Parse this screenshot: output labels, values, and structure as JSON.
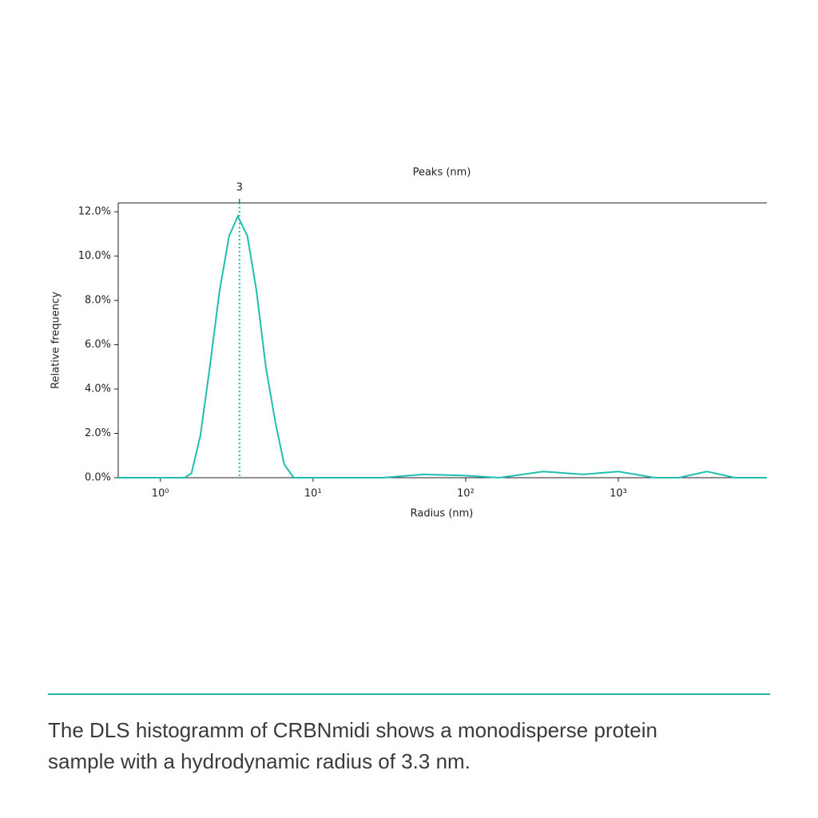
{
  "chart_data": {
    "type": "line",
    "xlabel": "Radius (nm)",
    "ylabel": "Relative frequency",
    "x2label": "Peaks (nm)",
    "xscale": "log",
    "xlim": [
      0.53,
      9400
    ],
    "ylim": [
      0,
      12.4
    ],
    "xticks": [
      {
        "value": 1,
        "label": "10⁰"
      },
      {
        "value": 10,
        "label": "10¹"
      },
      {
        "value": 100,
        "label": "10²"
      },
      {
        "value": 1000,
        "label": "10³"
      }
    ],
    "yticks": [
      {
        "value": 0,
        "label": "0.0%"
      },
      {
        "value": 2,
        "label": "2.0%"
      },
      {
        "value": 4,
        "label": "4.0%"
      },
      {
        "value": 6,
        "label": "6.0%"
      },
      {
        "value": 8,
        "label": "8.0%"
      },
      {
        "value": 10,
        "label": "10.0%"
      },
      {
        "value": 12,
        "label": "12.0%"
      }
    ],
    "x2ticks": [
      {
        "value": 3.3,
        "label": "3"
      }
    ],
    "series": [
      {
        "color": "#1fbfb0",
        "x": [
          0.53,
          1.44,
          1.6,
          1.83,
          2.11,
          2.44,
          2.82,
          3.22,
          3.72,
          4.25,
          4.91,
          5.67,
          6.48,
          7.48,
          28.8,
          52.8,
          96.5,
          166,
          322,
          589,
          1000,
          1740,
          2500,
          3800,
          5800,
          9400
        ],
        "values": [
          0,
          0,
          0.2,
          1.9,
          5,
          8.4,
          10.9,
          11.8,
          10.9,
          8.5,
          5,
          2.5,
          0.6,
          0,
          0,
          0.15,
          0.1,
          0,
          0.28,
          0.15,
          0.28,
          0,
          0,
          0.28,
          0,
          0
        ]
      }
    ]
  },
  "caption": "The DLS histogramm of CRBNmidi shows a monodisperse protein sample with a hydrodynamic radius of 3.3 nm."
}
